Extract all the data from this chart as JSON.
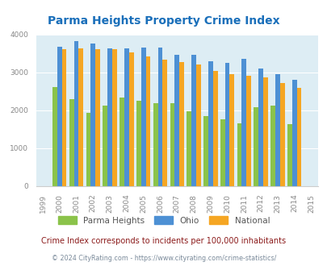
{
  "title": "Parma Heights Property Crime Index",
  "years": [
    1999,
    2000,
    2001,
    2002,
    2003,
    2004,
    2005,
    2006,
    2007,
    2008,
    2009,
    2010,
    2011,
    2012,
    2013,
    2014,
    2015
  ],
  "parma_heights": [
    null,
    2620,
    2300,
    1930,
    2130,
    2330,
    2250,
    2190,
    2190,
    1980,
    1860,
    1760,
    1650,
    2080,
    2130,
    1640,
    null
  ],
  "ohio": [
    null,
    3680,
    3830,
    3760,
    3640,
    3640,
    3650,
    3660,
    3470,
    3460,
    3290,
    3250,
    3360,
    3110,
    2950,
    2800,
    null
  ],
  "national": [
    null,
    3620,
    3640,
    3620,
    3610,
    3530,
    3430,
    3340,
    3270,
    3210,
    3040,
    2950,
    2920,
    2870,
    2730,
    2600,
    null
  ],
  "parma_color": "#8bc34a",
  "ohio_color": "#4d90d4",
  "national_color": "#f5a623",
  "bg_color": "#ddedf4",
  "ylim": [
    0,
    4000
  ],
  "yticks": [
    0,
    1000,
    2000,
    3000,
    4000
  ],
  "footnote1": "Crime Index corresponds to incidents per 100,000 inhabitants",
  "footnote2": "© 2024 CityRating.com - https://www.cityrating.com/crime-statistics/",
  "title_color": "#1a6fba",
  "footnote1_color": "#8b1a1a",
  "footnote2_color": "#7a8a9a"
}
